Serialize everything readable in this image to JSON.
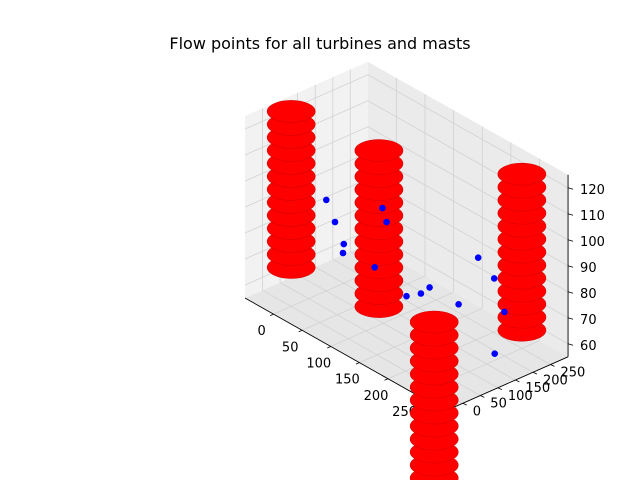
{
  "chart_data": {
    "type": "scatter3d",
    "title": "Flow points for all turbines and masts",
    "xlabel": "",
    "ylabel": "",
    "zlabel": "",
    "xlim": [
      -50,
      300
    ],
    "ylim": [
      -50,
      300
    ],
    "zlim": [
      55,
      125
    ],
    "xticks": [
      0,
      50,
      100,
      150,
      200,
      250
    ],
    "yticks": [
      0,
      50,
      100,
      150,
      200,
      250
    ],
    "zticks": [
      60,
      70,
      80,
      90,
      100,
      110,
      120
    ],
    "grid": true,
    "series": [
      {
        "color": "#ff0000",
        "marker": "large circle",
        "columns": [
          {
            "x": 0,
            "y": 250,
            "z": [
              40,
              45,
              50,
              55,
              60,
              65,
              70,
              75,
              80,
              85,
              90,
              95,
              100
            ]
          },
          {
            "x": 0,
            "y": 0,
            "z": [
              70,
              75,
              80,
              85,
              90,
              95,
              100,
              105,
              110,
              115,
              120,
              125,
              130
            ]
          },
          {
            "x": 250,
            "y": 250,
            "z": [
              62,
              67,
              72,
              77,
              82,
              87,
              92,
              97,
              102,
              107,
              112,
              117,
              122
            ]
          },
          {
            "x": 250,
            "y": 0,
            "z": [
              20,
              25,
              30,
              35,
              40,
              45,
              50,
              55,
              60,
              65,
              70,
              75,
              80
            ]
          }
        ]
      },
      {
        "color": "#0000ff",
        "marker": "small circle",
        "points": [
          {
            "x": 0,
            "y": 125,
            "z": 80
          },
          {
            "x": 0,
            "y": 150,
            "z": 70
          },
          {
            "x": 0,
            "y": 100,
            "z": 90
          },
          {
            "x": 80,
            "y": 130,
            "z": 95
          },
          {
            "x": 60,
            "y": 50,
            "z": 80
          },
          {
            "x": 100,
            "y": 75,
            "z": 78
          },
          {
            "x": 125,
            "y": 125,
            "z": 67
          },
          {
            "x": 130,
            "y": 60,
            "z": 100
          },
          {
            "x": 190,
            "y": 60,
            "z": 80
          },
          {
            "x": 150,
            "y": 150,
            "z": 72
          },
          {
            "x": 170,
            "y": 200,
            "z": 65
          },
          {
            "x": 235,
            "y": 150,
            "z": 94
          },
          {
            "x": 220,
            "y": 220,
            "z": 80
          },
          {
            "x": 250,
            "y": 200,
            "z": 72
          },
          {
            "x": 270,
            "y": 140,
            "z": 62
          }
        ]
      }
    ]
  }
}
